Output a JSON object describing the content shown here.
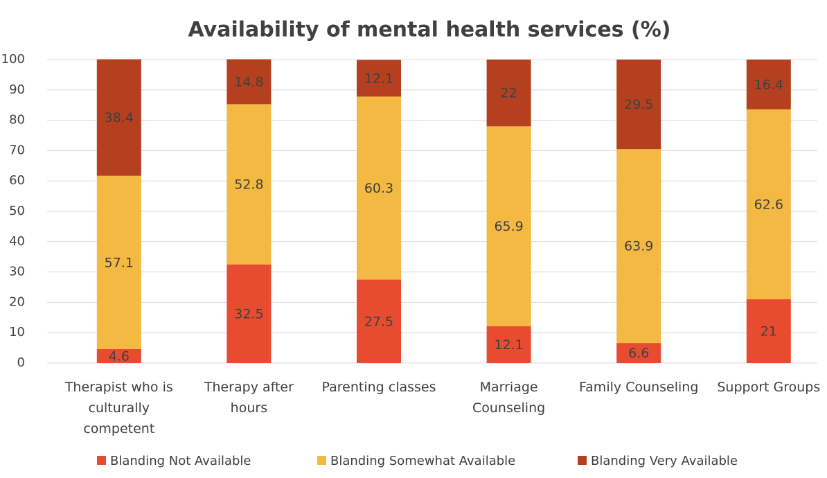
{
  "chart_data": {
    "type": "stacked_bar",
    "title": "Availability of mental health services (%)",
    "categories": [
      "Therapist who is culturally competent",
      "Therapy after hours",
      "Parenting classes",
      "Marriage Counseling",
      "Family Counseling",
      "Support Groups"
    ],
    "series": [
      {
        "name": "Blanding Not Available",
        "color": "#e84c30",
        "values": [
          4.6,
          32.5,
          27.5,
          12.1,
          6.6,
          21
        ]
      },
      {
        "name": "Blanding Somewhat Available",
        "color": "#f4b942",
        "values": [
          57.1,
          52.8,
          60.3,
          65.9,
          63.9,
          62.6
        ]
      },
      {
        "name": "Blanding Very Available",
        "color": "#b5401f",
        "values": [
          38.4,
          14.8,
          12.1,
          22,
          29.5,
          16.4
        ]
      }
    ],
    "ylim": [
      0,
      100
    ],
    "yticks": [
      0,
      10,
      20,
      30,
      40,
      50,
      60,
      70,
      80,
      90,
      100
    ],
    "grid": true,
    "legend": "bottom"
  }
}
